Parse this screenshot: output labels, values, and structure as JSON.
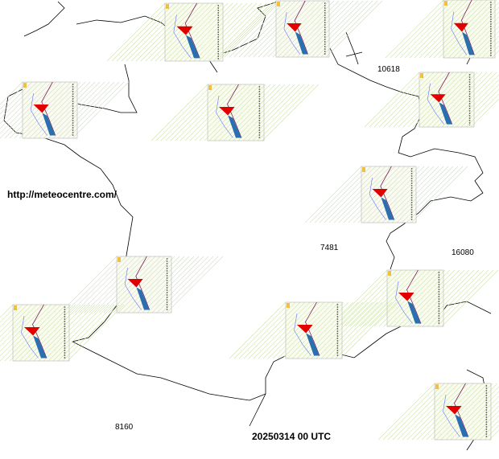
{
  "source_url": "http://meteocentre.com/",
  "station_labels": [
    "10618",
    "7481",
    "16080",
    "8160"
  ],
  "timestamp": "20250314 00 UTC"
}
